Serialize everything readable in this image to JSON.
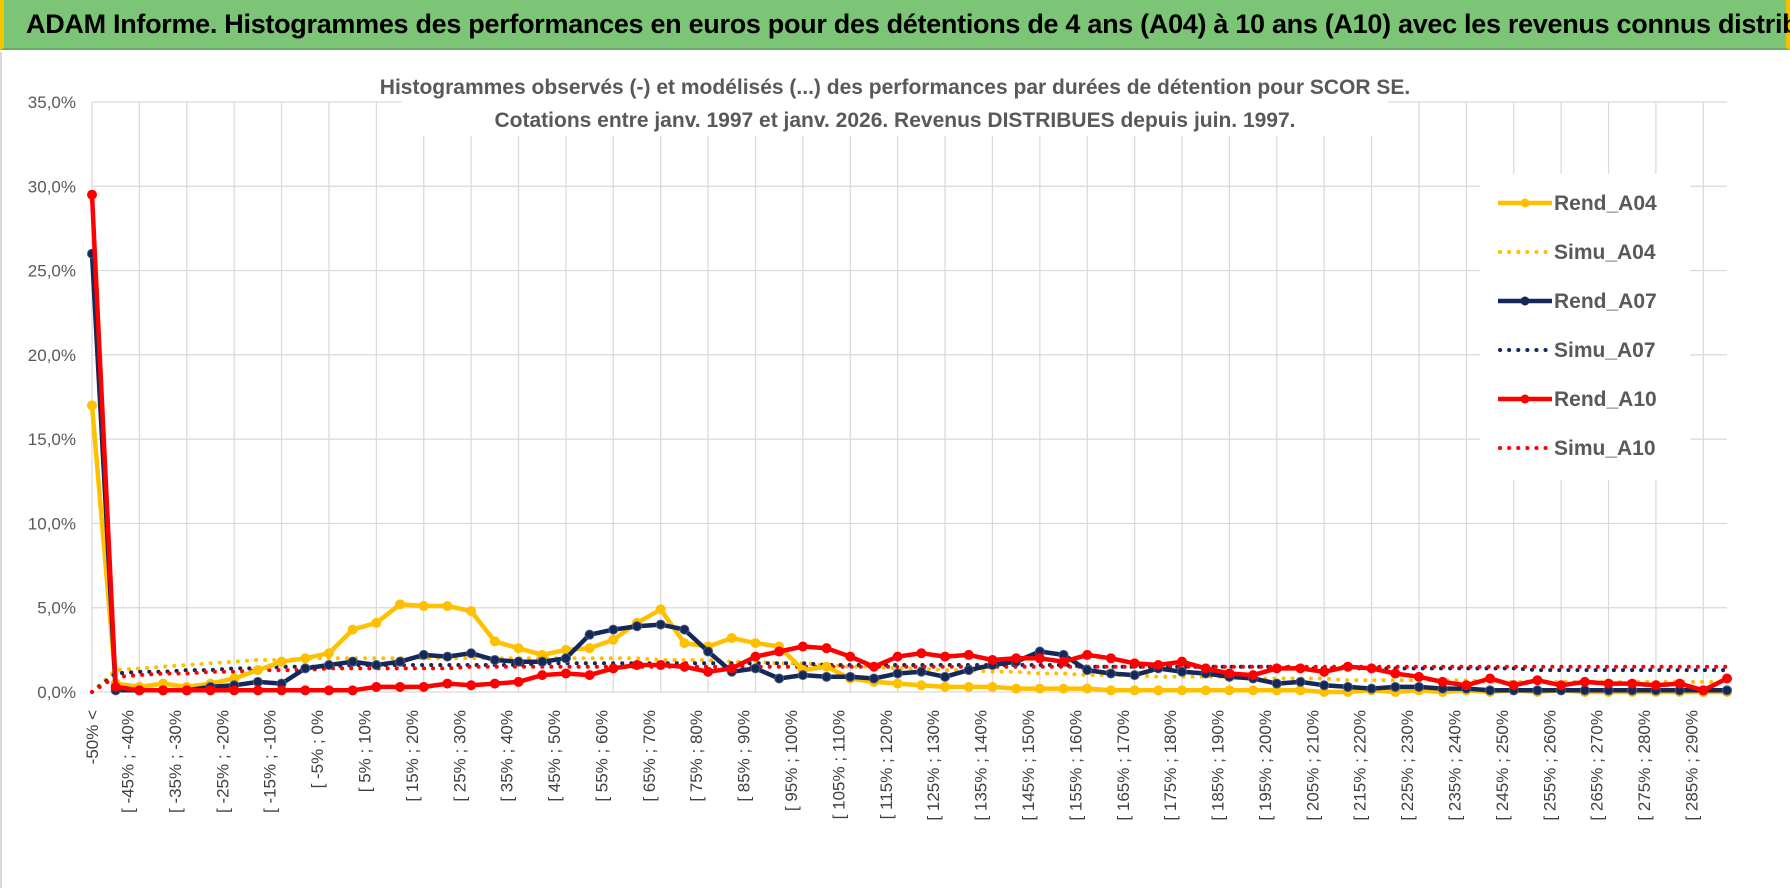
{
  "banner": {
    "title": "ADAM Informe. Histogrammes des performances en euros pour des détentions de 4 ans (A04) à 10 ans (A10) avec les revenus connus distribués"
  },
  "chart_data": {
    "type": "line",
    "title_lines": [
      "Histogrammes observés (-) et modélisés (...) des performances par durées de détention pour SCOR SE.",
      "Cotations entre janv. 1997 et janv. 2026. Revenus DISTRIBUES depuis juin. 1997."
    ],
    "ylim": [
      0,
      35
    ],
    "y_ticks": [
      "0,0%",
      "5,0%",
      "10,0%",
      "15,0%",
      "20,0%",
      "25,0%",
      "30,0%",
      "35,0%"
    ],
    "y_tick_values": [
      0,
      5,
      10,
      15,
      20,
      25,
      30,
      35
    ],
    "grid": true,
    "legend_position": "right",
    "x_count": 70,
    "x_tick_labels": [
      "-50% <",
      "[ -45% ; -40%",
      "[ -35% ; -30%",
      "[ -25% ; -20%",
      "[ -15% ; -10%",
      "[ -5% ; 0%",
      "[ 5% ; 10%",
      "[ 15% ; 20%",
      "[ 25% ; 30%",
      "[ 35% ; 40%",
      "[ 45% ; 50%",
      "[ 55% ; 60%",
      "[ 65% ; 70%",
      "[ 75% ; 80%",
      "[ 85% ; 90%",
      "[ 95% ; 100%",
      "[ 105% ; 110%",
      "[ 115% ; 120%",
      "[ 125% ; 130%",
      "[ 135% ; 140%",
      "[ 145% ; 150%",
      "[ 155% ; 160%",
      "[ 165% ; 170%",
      "[ 175% ; 180%",
      "[ 185% ; 190%",
      "[ 195% ; 200%",
      "[ 205% ; 210%",
      "[ 215% ; 220%",
      "[ 225% ; 230%",
      "[ 235% ; 240%",
      "[ 245% ; 250%",
      "[ 255% ; 260%",
      "[ 265% ; 270%",
      "[ 275% ; 280%",
      "[ 285% ; 290%"
    ],
    "series": [
      {
        "name": "Rend_A04",
        "color": "#ffc000",
        "style": "solid",
        "markers": true,
        "values": [
          17.0,
          0.5,
          0.3,
          0.5,
          0.3,
          0.5,
          0.8,
          1.3,
          1.8,
          2.0,
          2.3,
          3.7,
          4.1,
          5.2,
          5.1,
          5.1,
          4.8,
          3.0,
          2.6,
          2.2,
          2.5,
          2.6,
          3.1,
          4.1,
          4.9,
          2.9,
          2.7,
          3.2,
          2.9,
          2.7,
          1.3,
          1.5,
          0.8,
          0.6,
          0.5,
          0.4,
          0.3,
          0.3,
          0.3,
          0.2,
          0.2,
          0.2,
          0.2,
          0.1,
          0.1,
          0.1,
          0.1,
          0.1,
          0.1,
          0.1,
          0.1,
          0.1,
          0.0,
          0.0,
          0.1,
          0.0,
          0.1,
          0.0,
          0.1,
          0.0,
          0.1,
          0.0,
          0.1,
          0.0,
          0.0,
          0.0,
          0.0,
          0.0,
          0.0,
          0.0
        ]
      },
      {
        "name": "Simu_A04",
        "color": "#ffc000",
        "style": "dotted",
        "markers": false,
        "values": [
          0.0,
          1.3,
          1.4,
          1.5,
          1.6,
          1.7,
          1.8,
          1.9,
          1.9,
          2.0,
          2.0,
          2.0,
          2.0,
          2.0,
          2.0,
          2.0,
          2.0,
          2.0,
          2.0,
          2.0,
          2.0,
          2.0,
          2.0,
          2.0,
          1.9,
          1.9,
          1.9,
          1.8,
          1.8,
          1.7,
          1.7,
          1.6,
          1.5,
          1.5,
          1.4,
          1.4,
          1.3,
          1.3,
          1.2,
          1.2,
          1.1,
          1.1,
          1.0,
          1.0,
          1.0,
          0.9,
          0.9,
          0.9,
          0.9,
          0.8,
          0.8,
          0.8,
          0.8,
          0.7,
          0.7,
          0.7,
          0.7,
          0.7,
          0.7,
          0.6,
          0.6,
          0.6,
          0.6,
          0.6,
          0.6,
          0.6,
          0.6,
          0.6,
          0.6,
          0.6
        ]
      },
      {
        "name": "Rend_A07",
        "color": "#14285a",
        "style": "solid",
        "markers": true,
        "values": [
          26.0,
          0.1,
          0.1,
          0.1,
          0.1,
          0.3,
          0.4,
          0.6,
          0.5,
          1.4,
          1.6,
          1.8,
          1.6,
          1.8,
          2.2,
          2.1,
          2.3,
          1.9,
          1.8,
          1.8,
          2.0,
          3.4,
          3.7,
          3.9,
          4.0,
          3.7,
          2.4,
          1.2,
          1.4,
          0.8,
          1.0,
          0.9,
          0.9,
          0.8,
          1.1,
          1.2,
          0.9,
          1.3,
          1.6,
          1.8,
          2.4,
          2.2,
          1.3,
          1.1,
          1.0,
          1.4,
          1.2,
          1.1,
          0.9,
          0.8,
          0.5,
          0.6,
          0.4,
          0.3,
          0.2,
          0.3,
          0.3,
          0.2,
          0.2,
          0.1,
          0.1,
          0.1,
          0.1,
          0.1,
          0.1,
          0.1,
          0.1,
          0.1,
          0.1,
          0.1
        ]
      },
      {
        "name": "Simu_A07",
        "color": "#14285a",
        "style": "dotted",
        "markers": false,
        "values": [
          0.0,
          1.1,
          1.2,
          1.2,
          1.3,
          1.3,
          1.4,
          1.4,
          1.5,
          1.5,
          1.5,
          1.6,
          1.6,
          1.6,
          1.6,
          1.6,
          1.6,
          1.6,
          1.6,
          1.7,
          1.7,
          1.7,
          1.7,
          1.7,
          1.7,
          1.7,
          1.7,
          1.7,
          1.7,
          1.7,
          1.7,
          1.6,
          1.6,
          1.6,
          1.6,
          1.6,
          1.6,
          1.6,
          1.6,
          1.6,
          1.6,
          1.6,
          1.5,
          1.5,
          1.5,
          1.5,
          1.5,
          1.5,
          1.5,
          1.5,
          1.5,
          1.4,
          1.4,
          1.4,
          1.4,
          1.4,
          1.4,
          1.4,
          1.4,
          1.4,
          1.4,
          1.3,
          1.3,
          1.3,
          1.3,
          1.3,
          1.3,
          1.3,
          1.3,
          1.3
        ]
      },
      {
        "name": "Rend_A10",
        "color": "#ff0000",
        "style": "solid",
        "markers": true,
        "values": [
          29.5,
          0.3,
          0.1,
          0.1,
          0.1,
          0.1,
          0.1,
          0.1,
          0.1,
          0.1,
          0.1,
          0.1,
          0.3,
          0.3,
          0.3,
          0.5,
          0.4,
          0.5,
          0.6,
          1.0,
          1.1,
          1.0,
          1.4,
          1.6,
          1.6,
          1.5,
          1.2,
          1.4,
          2.1,
          2.4,
          2.7,
          2.6,
          2.1,
          1.5,
          2.1,
          2.3,
          2.1,
          2.2,
          1.9,
          2.0,
          2.0,
          1.8,
          2.2,
          2.0,
          1.7,
          1.6,
          1.8,
          1.4,
          1.1,
          1.0,
          1.4,
          1.4,
          1.2,
          1.5,
          1.4,
          1.1,
          0.9,
          0.6,
          0.4,
          0.8,
          0.4,
          0.7,
          0.4,
          0.6,
          0.5,
          0.5,
          0.4,
          0.5,
          0.1,
          0.8
        ]
      },
      {
        "name": "Simu_A10",
        "color": "#ff0000",
        "style": "dotted",
        "markers": false,
        "values": [
          0.0,
          0.9,
          1.0,
          1.1,
          1.1,
          1.2,
          1.2,
          1.3,
          1.3,
          1.3,
          1.4,
          1.4,
          1.4,
          1.4,
          1.4,
          1.4,
          1.5,
          1.5,
          1.5,
          1.5,
          1.5,
          1.5,
          1.5,
          1.5,
          1.5,
          1.5,
          1.5,
          1.5,
          1.5,
          1.5,
          1.5,
          1.5,
          1.5,
          1.5,
          1.5,
          1.5,
          1.5,
          1.5,
          1.5,
          1.5,
          1.5,
          1.5,
          1.5,
          1.5,
          1.5,
          1.5,
          1.5,
          1.5,
          1.5,
          1.5,
          1.5,
          1.5,
          1.5,
          1.5,
          1.5,
          1.5,
          1.5,
          1.5,
          1.5,
          1.5,
          1.5,
          1.5,
          1.5,
          1.5,
          1.5,
          1.5,
          1.5,
          1.5,
          1.5,
          1.5
        ]
      }
    ]
  }
}
